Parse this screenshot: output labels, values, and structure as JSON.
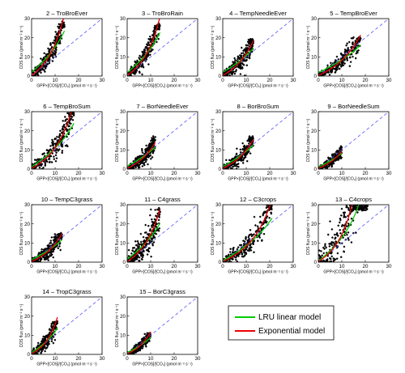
{
  "chart_data": {
    "type": "scatter",
    "legend": {
      "placement": "bottom-right",
      "items": [
        {
          "label": "LRU linear model",
          "color": "#00cc00"
        },
        {
          "label": "Exponential model",
          "color": "#ee0000"
        }
      ]
    },
    "x_axis_label": "GPP×[COS]/[CO₂] (pmol m⁻² s⁻¹)",
    "y_axis_label": "COS flux (pmol m⁻² s⁻¹)",
    "xlim": [
      0,
      30
    ],
    "ylim": [
      0,
      30
    ],
    "x_ticks": [
      "0",
      "10",
      "20",
      "30"
    ],
    "y_ticks": [
      "0",
      "10",
      "20",
      "30"
    ],
    "reference_line": {
      "type": "1:1",
      "color": "#5555ff",
      "style": "dashed"
    },
    "panels": [
      {
        "title": "2 – TroBroEver",
        "xmax": 14,
        "ymax": 28,
        "spread": 2.5,
        "lru_slope": 1.8,
        "lru_intercept": 2.0,
        "exp_a": 2.7,
        "exp_b": 0.168
      },
      {
        "title": "3 – TroBroRain",
        "xmax": 14,
        "ymax": 27,
        "spread": 2.5,
        "lru_slope": 1.75,
        "lru_intercept": 1.8,
        "exp_a": 2.6,
        "exp_b": 0.168
      },
      {
        "title": "4 – TempNeedleEver",
        "xmax": 13,
        "ymax": 19,
        "spread": 2.3,
        "lru_slope": 1.15,
        "lru_intercept": 2.0,
        "exp_a": 3.0,
        "exp_b": 0.135
      },
      {
        "title": "5 – TempBroEver",
        "xmax": 18,
        "ymax": 20,
        "spread": 2.3,
        "lru_slope": 0.95,
        "lru_intercept": 1.8,
        "exp_a": 3.0,
        "exp_b": 0.105
      },
      {
        "title": "6 – TempBroSum",
        "xmax": 18,
        "ymax": 30,
        "spread": 3.2,
        "lru_slope": 1.45,
        "lru_intercept": 1.2,
        "exp_a": 2.2,
        "exp_b": 0.145
      },
      {
        "title": "7 – BorNeedleEver",
        "xmax": 12,
        "ymax": 17,
        "spread": 2.0,
        "lru_slope": 1.05,
        "lru_intercept": 1.6,
        "exp_a": 2.4,
        "exp_b": 0.14
      },
      {
        "title": "8 – BorBroSum",
        "xmax": 13,
        "ymax": 17,
        "spread": 2.0,
        "lru_slope": 1.1,
        "lru_intercept": 1.4,
        "exp_a": 2.4,
        "exp_b": 0.135
      },
      {
        "title": "9 – BorNeedleSum",
        "xmax": 10,
        "ymax": 12,
        "spread": 1.3,
        "lru_slope": 0.95,
        "lru_intercept": 1.2,
        "exp_a": 1.9,
        "exp_b": 0.15
      },
      {
        "title": "10 – TempC3grass",
        "xmax": 13,
        "ymax": 15,
        "spread": 2.0,
        "lru_slope": 1.0,
        "lru_intercept": 1.3,
        "exp_a": 2.2,
        "exp_b": 0.14
      },
      {
        "title": "11 – C4grass",
        "xmax": 14,
        "ymax": 28,
        "spread": 4.0,
        "lru_slope": 1.6,
        "lru_intercept": 1.5,
        "exp_a": 2.6,
        "exp_b": 0.16
      },
      {
        "title": "12 – C3crops",
        "xmax": 21,
        "ymax": 30,
        "spread": 2.8,
        "lru_slope": 1.25,
        "lru_intercept": 0.8,
        "exp_a": 1.9,
        "exp_b": 0.128
      },
      {
        "title": "13 – C4crops",
        "xmax": 21,
        "ymax": 30,
        "spread": 7.0,
        "lru_slope": 1.8,
        "lru_intercept": 0.5,
        "exp_a": 1.9,
        "exp_b": 0.18
      },
      {
        "title": "14 – TropC3grass",
        "xmax": 11,
        "ymax": 17,
        "spread": 2.0,
        "lru_slope": 1.35,
        "lru_intercept": 1.0,
        "exp_a": 1.5,
        "exp_b": 0.22
      },
      {
        "title": "15 – BorC3grass",
        "xmax": 10,
        "ymax": 11,
        "spread": 1.2,
        "lru_slope": 0.95,
        "lru_intercept": 1.0,
        "exp_a": 1.6,
        "exp_b": 0.19
      }
    ]
  }
}
